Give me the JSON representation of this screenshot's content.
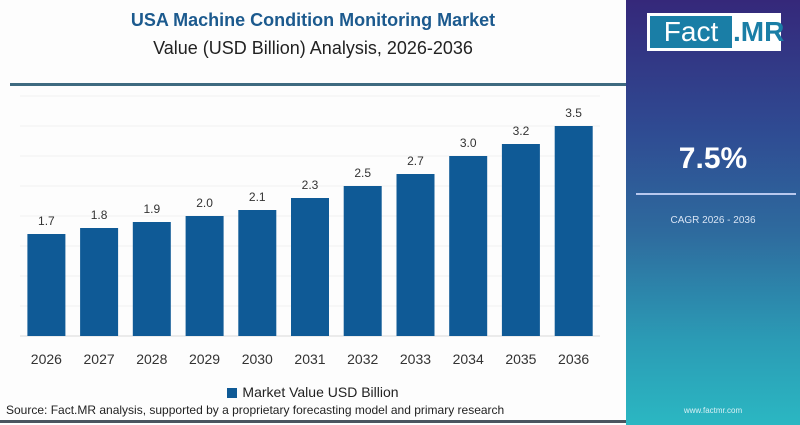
{
  "header": {
    "title": "USA Machine Condition Monitoring Market",
    "subtitle": "Value (USD Billion) Analysis, 2026-2036"
  },
  "legend": {
    "label": "Market Value USD Billion",
    "color": "#0f5a96"
  },
  "source": "Source: Fact.MR analysis, supported by a proprietary forecasting model and primary research",
  "panel": {
    "logo_left": "Fact",
    "logo_right": ".MR",
    "cagr_value": "7.5%",
    "cagr_label": "CAGR 2026 - 2036",
    "website": "www.factmr.com"
  },
  "chart_data": {
    "type": "bar",
    "title": "USA Machine Condition Monitoring Market",
    "subtitle": "Value (USD Billion) Analysis, 2026-2036",
    "xlabel": "",
    "ylabel": "",
    "categories": [
      "2026",
      "2027",
      "2028",
      "2029",
      "2030",
      "2031",
      "2032",
      "2033",
      "2034",
      "2035",
      "2036"
    ],
    "series": [
      {
        "name": "Market Value USD Billion",
        "values": [
          1.7,
          1.8,
          1.9,
          2.0,
          2.1,
          2.3,
          2.5,
          2.7,
          3.0,
          3.2,
          3.5
        ]
      }
    ],
    "data_labels": [
      "1.7",
      "1.8",
      "1.9",
      "2.0",
      "2.1",
      "2.3",
      "2.5",
      "2.7",
      "3.0",
      "3.2",
      "3.5"
    ],
    "ylim": [
      0,
      4.0
    ],
    "grid": true,
    "legend_position": "bottom",
    "bar_color": "#0f5a96"
  }
}
